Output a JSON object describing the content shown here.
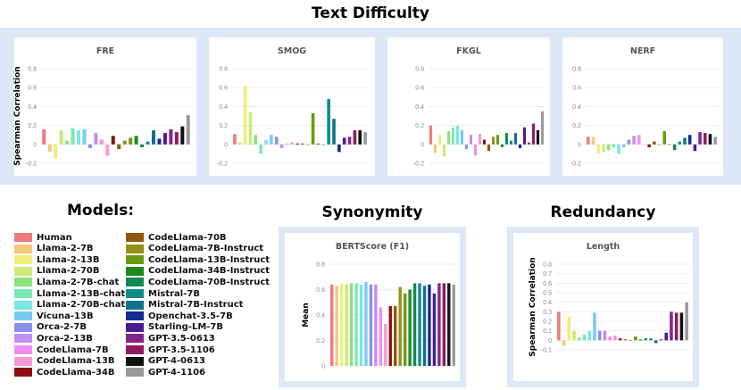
{
  "sections": {
    "text_difficulty": "Text Difficulty",
    "models": "Models:",
    "synonymity": "Synonymity",
    "redundancy": "Redundancy"
  },
  "models": [
    {
      "name": "Human",
      "color": "#f07a7a"
    },
    {
      "name": "Llama-2-7B",
      "color": "#f5c97a"
    },
    {
      "name": "Llama-2-13B",
      "color": "#f0ee7c"
    },
    {
      "name": "Llama-2-70B",
      "color": "#cdea7a"
    },
    {
      "name": "Llama-2-7B-chat",
      "color": "#8ee27a"
    },
    {
      "name": "Llama-2-13B-chat",
      "color": "#7ae8b4"
    },
    {
      "name": "Llama-2-70B-chat",
      "color": "#7ae6e6"
    },
    {
      "name": "Vicuna-13B",
      "color": "#7acaf0"
    },
    {
      "name": "Orca-2-7B",
      "color": "#8a90ee"
    },
    {
      "name": "Orca-2-13B",
      "color": "#c28ef0"
    },
    {
      "name": "CodeLlama-7B",
      "color": "#f08ef0"
    },
    {
      "name": "CodeLlama-13B",
      "color": "#f59ad2"
    },
    {
      "name": "CodeLlama-34B",
      "color": "#8b1111"
    },
    {
      "name": "CodeLlama-70B",
      "color": "#8f5710"
    },
    {
      "name": "CodeLlama-7B-Instruct",
      "color": "#94901a"
    },
    {
      "name": "CodeLlama-13B-Instruct",
      "color": "#6a9b12"
    },
    {
      "name": "CodeLlama-34B-Instruct",
      "color": "#1f8a1f"
    },
    {
      "name": "CodeLlama-70B-Instruct",
      "color": "#128a55"
    },
    {
      "name": "Mistral-7B",
      "color": "#128a8a"
    },
    {
      "name": "Mistral-7B-Instruct",
      "color": "#12708f"
    },
    {
      "name": "Openchat-3.5-7B",
      "color": "#142b8f"
    },
    {
      "name": "Starling-LM-7B",
      "color": "#4a1d8f"
    },
    {
      "name": "GPT-3.5-0613",
      "color": "#83258c"
    },
    {
      "name": "GPT-3.5-1106",
      "color": "#8f1a62"
    },
    {
      "name": "GPT-4-0613",
      "color": "#111111"
    },
    {
      "name": "GPT-4-1106",
      "color": "#9a9a9a"
    }
  ],
  "chart_data": [
    {
      "id": "fre",
      "type": "bar",
      "title": "FRE",
      "ylabel": "Spearman Correlation",
      "ylim": [
        -0.2,
        0.8
      ],
      "ticks": [
        "0.8",
        "0.6",
        "0.4",
        "0.2",
        "0",
        "-0.2"
      ],
      "tick_values": [
        0.8,
        0.6,
        0.4,
        0.2,
        0,
        -0.2
      ],
      "values": [
        0.16,
        -0.08,
        -0.15,
        0.15,
        0.04,
        0.17,
        0.15,
        0.16,
        -0.04,
        0.12,
        0.05,
        -0.12,
        0.09,
        -0.05,
        0.04,
        0.07,
        0.09,
        -0.03,
        0.03,
        0.15,
        0.06,
        0.12,
        0.16,
        0.13,
        0.19,
        0.31
      ]
    },
    {
      "id": "smog",
      "type": "bar",
      "title": "SMOG",
      "ylabel": "",
      "ylim": [
        -0.2,
        0.8
      ],
      "ticks": [
        "0.8",
        "0.6",
        "0.4",
        "0.2",
        "0",
        "-0.2"
      ],
      "tick_values": [
        0.8,
        0.6,
        0.4,
        0.2,
        0,
        -0.2
      ],
      "values": [
        0.11,
        0.02,
        0.62,
        0.34,
        0.1,
        -0.1,
        0.05,
        0.1,
        0.08,
        -0.04,
        0.01,
        0.02,
        0.01,
        0.01,
        0.0,
        0.33,
        0.01,
        0.0,
        0.48,
        0.27,
        -0.08,
        0.07,
        0.08,
        0.15,
        0.15,
        0.13
      ]
    },
    {
      "id": "fkgl",
      "type": "bar",
      "title": "FKGL",
      "ylabel": "",
      "ylim": [
        -0.2,
        0.8
      ],
      "ticks": [
        "0.8",
        "0.6",
        "0.4",
        "0.2",
        "0",
        "-0.2"
      ],
      "tick_values": [
        0.8,
        0.6,
        0.4,
        0.2,
        0,
        -0.2
      ],
      "values": [
        0.2,
        -0.09,
        0.1,
        -0.13,
        0.14,
        0.18,
        0.2,
        0.15,
        -0.05,
        0.1,
        -0.12,
        0.11,
        0.05,
        -0.07,
        0.08,
        0.1,
        -0.03,
        0.12,
        0.04,
        0.12,
        -0.04,
        0.18,
        0.02,
        0.22,
        0.15,
        0.35
      ]
    },
    {
      "id": "nerf",
      "type": "bar",
      "title": "NERF",
      "ylabel": "",
      "ylim": [
        -0.2,
        0.8
      ],
      "ticks": [
        "0.8",
        "0.6",
        "0.4",
        "0.2",
        "0",
        "-0.2"
      ],
      "tick_values": [
        0.8,
        0.6,
        0.4,
        0.2,
        0,
        -0.2
      ],
      "values": [
        0.08,
        0.08,
        -0.1,
        -0.08,
        -0.06,
        -0.03,
        -0.1,
        -0.03,
        0.05,
        0.09,
        0.1,
        0.0,
        -0.03,
        0.03,
        0.0,
        0.14,
        0.0,
        -0.06,
        0.03,
        0.07,
        0.1,
        -0.07,
        0.13,
        0.12,
        0.11,
        0.08
      ]
    },
    {
      "id": "bertscore",
      "type": "bar",
      "title": "BERTScore (F1)",
      "ylabel": "Mean",
      "ylim": [
        0,
        0.8
      ],
      "ticks": [
        "0.8",
        "0.6",
        "0.4",
        "0.2",
        "0"
      ],
      "tick_values": [
        0.8,
        0.6,
        0.4,
        0.2,
        0
      ],
      "values": [
        0.64,
        0.63,
        0.65,
        0.64,
        0.65,
        0.65,
        0.64,
        0.66,
        0.64,
        0.64,
        0.46,
        0.33,
        0.47,
        0.47,
        0.62,
        0.57,
        0.6,
        0.65,
        0.65,
        0.63,
        0.64,
        0.57,
        0.65,
        0.65,
        0.65,
        0.64
      ]
    },
    {
      "id": "length",
      "type": "bar",
      "title": "Length",
      "ylabel": "Spearman Correlation",
      "ylim": [
        -0.1,
        0.8
      ],
      "ticks": [
        "0.8",
        "0.7",
        "0.6",
        "0.5",
        "0.4",
        "0.3",
        "0.2",
        "0.1",
        "0",
        "-0.1"
      ],
      "tick_values": [
        0.8,
        0.7,
        0.6,
        0.5,
        0.4,
        0.3,
        0.2,
        0.1,
        0,
        -0.1
      ],
      "values": [
        0.3,
        -0.06,
        0.25,
        0.1,
        0.03,
        0.06,
        0.1,
        0.29,
        0.1,
        0.1,
        0.04,
        0.05,
        0.02,
        0.01,
        0.0,
        0.04,
        0.01,
        0.02,
        0.02,
        -0.03,
        0.01,
        0.08,
        0.3,
        0.29,
        0.29,
        0.4
      ]
    }
  ]
}
